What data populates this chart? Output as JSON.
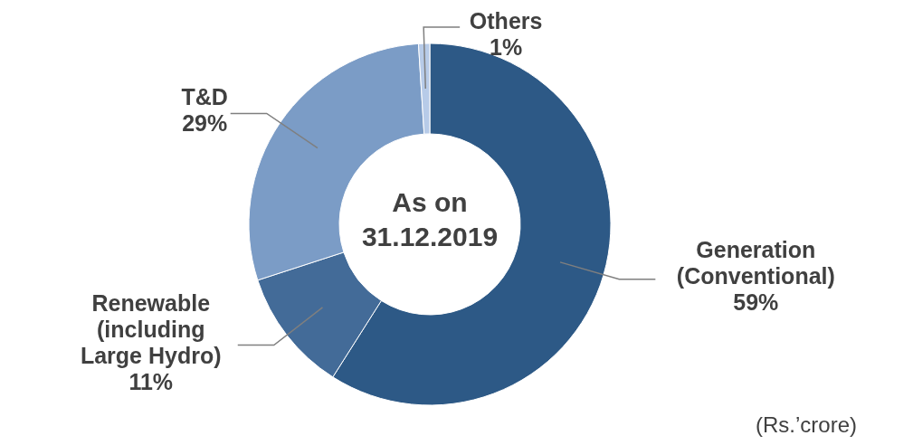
{
  "chart_data": {
    "type": "donut",
    "categories": [
      "Generation (Conventional)",
      "Renewable (including Large Hydro)",
      "T&D",
      "Others"
    ],
    "values": [
      59,
      11,
      29,
      1
    ],
    "colors": [
      "#2d5986",
      "#436b98",
      "#7b9cc6",
      "#b7cbe8"
    ],
    "value_labels": [
      "59%",
      "11%",
      "29%",
      "1%"
    ],
    "annotations": [
      "As on 31.12.2019",
      "(Rs.’crore)"
    ]
  }
}
